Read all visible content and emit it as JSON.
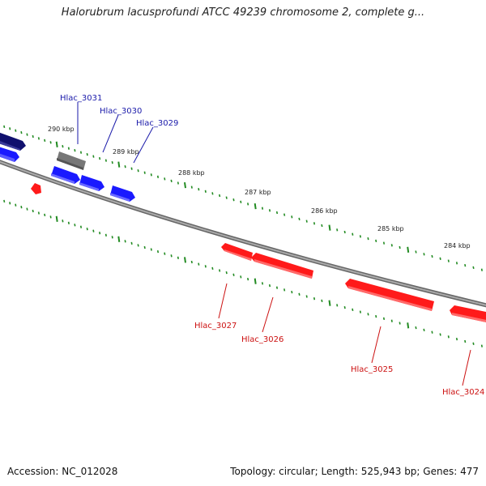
{
  "title": "Halorubrum lacusprofundi ATCC 49239 chromosome 2, complete g...",
  "footer": {
    "accession_label": "Accession:",
    "accession": "NC_012028",
    "topology_label": "Topology:",
    "topology": "circular",
    "length_label": "Length:",
    "length": "525,943 bp",
    "genes_label": "Genes:",
    "genes": "477"
  },
  "colors": {
    "forward": "#1a1aff",
    "forward_dark": "#10106e",
    "reverse": "#ff1a1a",
    "neutral": "#777777",
    "ticks": "#228b22",
    "backbone": "#888888",
    "forward_label": "#1a1aaa",
    "reverse_label": "#cc1111"
  },
  "kbp_labels": [
    "290 kbp",
    "289 kbp",
    "288 kbp",
    "287 kbp",
    "286 kbp",
    "285 kbp",
    "284 kbp"
  ],
  "forward_genes": [
    {
      "label": "Hlac_3031"
    },
    {
      "label": "Hlac_3030"
    },
    {
      "label": "Hlac_3029"
    }
  ],
  "reverse_genes": [
    {
      "label": "Hlac_3027"
    },
    {
      "label": "Hlac_3026"
    },
    {
      "label": "Hlac_3025"
    },
    {
      "label": "Hlac_3024"
    }
  ]
}
